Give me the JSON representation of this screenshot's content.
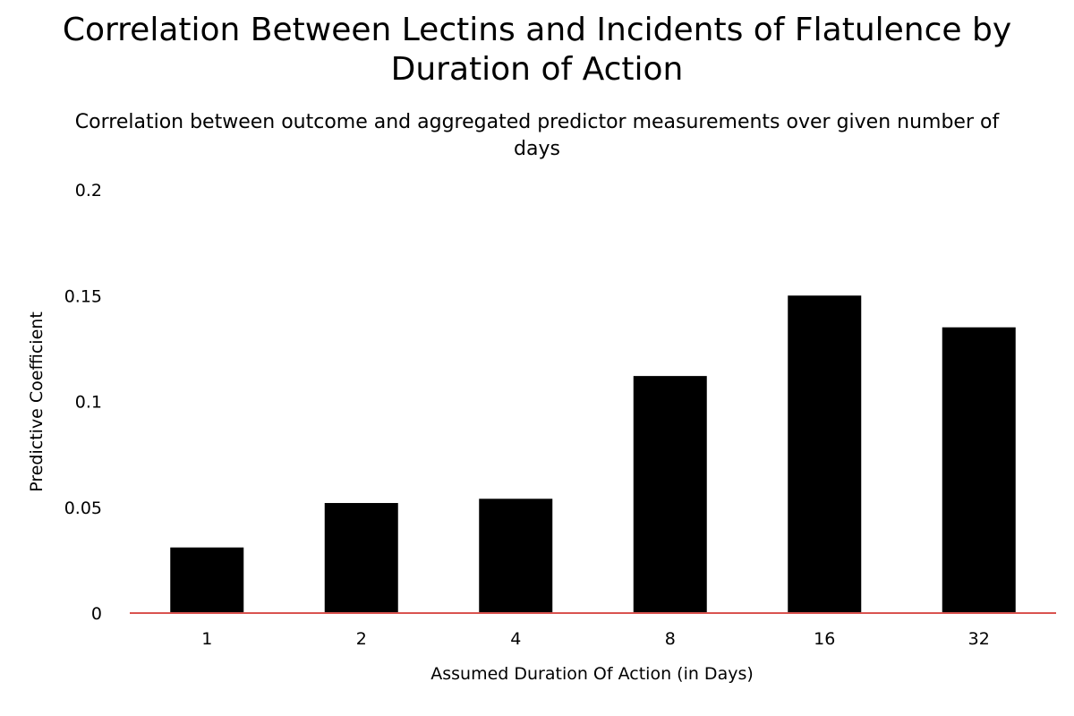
{
  "chart_data": {
    "type": "bar",
    "title": "Correlation Between Lectins and Incidents of Flatulence by Duration of Action",
    "subtitle": "Correlation between outcome and aggregated predictor measurements over given number of days",
    "xlabel": "Assumed Duration Of Action (in Days)",
    "ylabel": "Predictive Coefficient",
    "categories": [
      "1",
      "2",
      "4",
      "8",
      "16",
      "32"
    ],
    "values": [
      0.031,
      0.052,
      0.054,
      0.112,
      0.15,
      0.135
    ],
    "ylim": [
      0,
      0.2
    ],
    "yticks": [
      "0",
      "0.05",
      "0.1",
      "0.15",
      "0.2"
    ],
    "grid": false,
    "bar_color": "#000000",
    "baseline_color": "#d9534f"
  }
}
